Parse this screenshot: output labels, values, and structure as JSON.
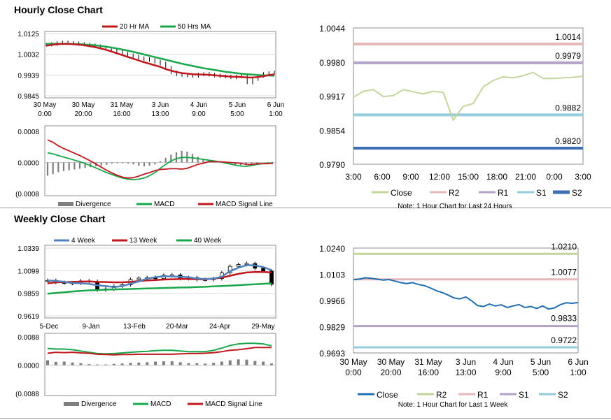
{
  "sections": {
    "hourly_title": "Hourly Close Chart",
    "weekly_title": "Weekly Close Chart"
  },
  "colors": {
    "ma20": "#c0181e",
    "ma50": "#1aa64a",
    "week4": "#4f81bd",
    "week13": "#c0181e",
    "week40": "#1aa64a",
    "close_light": "#c3d69b",
    "close_blue": "#1f6fb2",
    "r2": "#e6b9b8",
    "r1": "#b3a2c7",
    "s1": "#93cddd",
    "s2": "#3d6db3",
    "r2_weekly": "#c3d69b",
    "r1_weekly": "#e6b9b8",
    "s1_weekly": "#b3a2c7",
    "s2_weekly": "#93cddd",
    "divergence": "#7f7f7f",
    "macd": "#1aa64a",
    "signal": "#c0181e"
  },
  "chart_data": [
    {
      "id": "hourly-price",
      "type": "line",
      "title": "Hourly Close Chart",
      "legend": [
        "20 Hr MA",
        "50 Hrs MA"
      ],
      "y_ticks": [
        "1.0125",
        "1.0032",
        "0.9939",
        "0.9845"
      ],
      "ylim": [
        0.9845,
        1.0125
      ],
      "x_ticks": [
        {
          "line1": "30 May",
          "line2": "0:00"
        },
        {
          "line1": "30 May",
          "line2": "20:00"
        },
        {
          "line1": "31 May",
          "line2": "16:00"
        },
        {
          "line1": "3 Jun",
          "line2": "13:00"
        },
        {
          "line1": "4 Jun",
          "line2": "9:00"
        },
        {
          "line1": "5 Jun",
          "line2": "5:00"
        },
        {
          "line1": "6 Jun",
          "line2": "1:00"
        }
      ],
      "series": [
        {
          "name": "Close",
          "values": [
            1.0075,
            1.0078,
            1.0082,
            1.0085,
            1.0083,
            1.0081,
            1.0078,
            1.0075,
            1.0072,
            1.0068,
            1.0063,
            1.0058,
            1.005,
            1.0042,
            1.0034,
            1.0027,
            1.002,
            1.0014,
            1.001,
            1.0006,
            0.9998,
            0.999,
            0.997,
            0.995,
            0.9942,
            0.9939,
            0.9937,
            0.9935,
            0.9941,
            0.9943,
            0.994,
            0.9936,
            0.9932,
            0.9931,
            0.9928,
            0.9932,
            0.9934,
            0.9905,
            0.992,
            0.9935,
            0.9943,
            0.9947,
            0.995
          ]
        },
        {
          "name": "20 Hr MA",
          "values": [
            1.007,
            1.0074,
            1.0077,
            1.0078,
            1.0078,
            1.0077,
            1.0075,
            1.0072,
            1.0068,
            1.0064,
            1.0058,
            1.0052,
            1.0044,
            1.0036,
            1.0028,
            1.002,
            1.0012,
            1.0004,
            0.9996,
            0.9989,
            0.9982,
            0.9975,
            0.9965,
            0.9958,
            0.9952,
            0.9947,
            0.9945,
            0.9942,
            0.9941,
            0.994,
            0.9939,
            0.9937,
            0.9935,
            0.9933,
            0.9931,
            0.993,
            0.9929,
            0.9927,
            0.9927,
            0.9929,
            0.9933,
            0.9938,
            0.9941
          ]
        },
        {
          "name": "50 Hrs MA",
          "values": [
            1.0078,
            1.0079,
            1.0079,
            1.0079,
            1.0079,
            1.0078,
            1.0077,
            1.0076,
            1.0074,
            1.0072,
            1.0069,
            1.0066,
            1.0062,
            1.0058,
            1.0053,
            1.0048,
            1.0043,
            1.0037,
            1.0031,
            1.0025,
            1.0019,
            1.0013,
            1.0007,
            1.0001,
            0.9995,
            0.9989,
            0.9984,
            0.9979,
            0.9974,
            0.9969,
            0.9965,
            0.9961,
            0.9957,
            0.9953,
            0.995,
            0.9947,
            0.9944,
            0.9942,
            0.994,
            0.9938,
            0.9937,
            0.9936,
            0.9935
          ]
        }
      ]
    },
    {
      "id": "hourly-macd",
      "type": "bar",
      "y_ticks": [
        "0.0008",
        "0.0000",
        "(0.0008"
      ],
      "ylim": [
        -0.0008,
        0.0008
      ],
      "legend": [
        "Divergence",
        "MACD",
        "MACD Signal Line"
      ],
      "series": [
        {
          "name": "Divergence",
          "values": [
            -0.00034,
            -0.0003,
            -0.00025,
            -0.00022,
            -0.0002,
            -0.00018,
            -0.00016,
            -0.00014,
            -0.00012,
            -0.0001,
            -8e-05,
            -6e-05,
            -3e-05,
            -2e-05,
            -2e-05,
            -3e-05,
            -5e-05,
            -8e-05,
            -0.0001,
            -8e-05,
            -5e-05,
            3e-05,
            0.00012,
            0.0002,
            0.00026,
            0.0003,
            0.00028,
            0.00022,
            0.00015,
            0.0001,
            4e-05,
            2e-05,
            0,
            -2e-05,
            -4e-05,
            -6e-05,
            -7e-05,
            -5e-05,
            -3e-05,
            -2e-05,
            0,
            1e-05,
            1e-05
          ]
        },
        {
          "name": "MACD",
          "values": [
            0.00025,
            0.00022,
            0.00018,
            0.00014,
            0.0001,
            6e-05,
            2e-05,
            -3e-05,
            -8e-05,
            -0.00014,
            -0.0002,
            -0.00026,
            -0.00031,
            -0.00036,
            -0.0004,
            -0.00043,
            -0.00044,
            -0.00043,
            -0.0004,
            -0.00034,
            -0.00026,
            -0.00015,
            -5e-05,
            4e-05,
            0.0001,
            0.00013,
            0.00013,
            0.00012,
            0.0001,
            8e-05,
            6e-05,
            4e-05,
            2e-05,
            -1e-05,
            -4e-05,
            -7e-05,
            -9e-05,
            -0.0001,
            -8e-05,
            -5e-05,
            -3e-05,
            -2e-05,
            -1e-05
          ]
        },
        {
          "name": "MACD Signal Line",
          "values": [
            0.00058,
            0.00052,
            0.00043,
            0.00036,
            0.0003,
            0.00024,
            0.00018,
            0.00011,
            4e-05,
            -4e-05,
            -0.00012,
            -0.0002,
            -0.00027,
            -0.00033,
            -0.00038,
            -0.0004,
            -0.00039,
            -0.00035,
            -0.0003,
            -0.00026,
            -0.00021,
            -0.00018,
            -0.00017,
            -0.00016,
            -0.00016,
            -0.00017,
            -0.00015,
            -0.0001,
            -5e-05,
            -2e-05,
            2e-05,
            2e-05,
            2e-05,
            1e-05,
            0,
            -1e-05,
            -2e-05,
            -5e-05,
            -5e-05,
            -3e-05,
            -3e-05,
            -3e-05,
            -2e-05
          ]
        }
      ]
    },
    {
      "id": "hourly-levels",
      "type": "line",
      "ylim": [
        0.979,
        1.0044
      ],
      "y_ticks": [
        "1.0044",
        "0.9980",
        "0.9917",
        "0.9854",
        "0.9790"
      ],
      "x_ticks": [
        "3:00",
        "6:00",
        "9:00",
        "12:00",
        "15:00",
        "18:00",
        "21:00",
        "0:00",
        "3:00"
      ],
      "levels": [
        {
          "name": "R2",
          "value": 1.0014,
          "label": "1.0014"
        },
        {
          "name": "R1",
          "value": 0.9979,
          "label": "0.9979"
        },
        {
          "name": "S1",
          "value": 0.9882,
          "label": "0.9882"
        },
        {
          "name": "S2",
          "value": 0.982,
          "label": "0.9820"
        }
      ],
      "series": [
        {
          "name": "Close",
          "values": [
            0.9915,
            0.9926,
            0.9929,
            0.9916,
            0.9918,
            0.9929,
            0.9925,
            0.9921,
            0.9926,
            0.9924,
            0.9872,
            0.9898,
            0.9903,
            0.9934,
            0.9946,
            0.9953,
            0.9951,
            0.9955,
            0.9961,
            0.995,
            0.995,
            0.9951,
            0.9952,
            0.9954
          ]
        }
      ],
      "legend": [
        "Close",
        "R2",
        "R1",
        "S1",
        "S2"
      ],
      "note": "Note: 1 Hour Chart for Last 24 Hours"
    },
    {
      "id": "weekly-price",
      "type": "line",
      "title": "Weekly Close Chart",
      "legend": [
        "4 Week",
        "13 Week",
        "40 Week"
      ],
      "y_ticks": [
        "1.0339",
        "1.0099",
        "0.9859",
        "0.9619"
      ],
      "ylim": [
        0.9619,
        1.0339
      ],
      "x_ticks": [
        "5-Dec",
        "9-Jan",
        "13-Feb",
        "20-Mar",
        "24-Apr",
        "29-May"
      ],
      "series": [
        {
          "name": "Close",
          "values": [
            0.9995,
            0.9975,
            0.997,
            0.9965,
            0.999,
            0.9985,
            0.9895,
            0.9905,
            0.9935,
            0.995,
            1.0005,
            1.002,
            1.0025,
            1.0015,
            1.005,
            1.0055,
            1.0015,
            1.0025,
            1.0005,
            1.0005,
            1.0015,
            1.0075,
            1.0145,
            1.0165,
            1.0175,
            1.0125,
            1.0095,
            0.9955
          ]
        },
        {
          "name": "4 Week",
          "values": [
            0.9995,
            0.999,
            0.998,
            0.9968,
            0.9965,
            0.9958,
            0.9945,
            0.9935,
            0.9925,
            0.9935,
            0.996,
            0.9985,
            1.0015,
            1.003,
            1.004,
            1.0038,
            1.0035,
            1.003,
            1.0015,
            1.001,
            1.0015,
            1.0035,
            1.0095,
            1.013,
            1.0158,
            1.0155,
            1.0138,
            1.0105
          ]
        },
        {
          "name": "13 Week",
          "values": [
            0.9965,
            0.9975,
            0.9978,
            0.998,
            0.9983,
            0.9985,
            0.998,
            0.9978,
            0.9975,
            0.9975,
            0.998,
            0.9988,
            0.9995,
            1.0,
            1.0005,
            1.0008,
            1.001,
            1.001,
            1.0008,
            1.0008,
            1.0015,
            1.0025,
            1.0045,
            1.0065,
            1.008,
            1.0085,
            1.0085,
            1.008
          ]
        },
        {
          "name": "40 Week",
          "values": [
            0.9855,
            0.9862,
            0.987,
            0.9878,
            0.9885,
            0.989,
            0.9893,
            0.9897,
            0.99,
            0.9902,
            0.9905,
            0.9908,
            0.991,
            0.9912,
            0.9915,
            0.9918,
            0.992,
            0.9922,
            0.9925,
            0.9928,
            0.9932,
            0.9936,
            0.994,
            0.9945,
            0.995,
            0.9955,
            0.996,
            0.9965
          ]
        }
      ]
    },
    {
      "id": "weekly-macd",
      "type": "bar",
      "y_ticks": [
        "0.0088",
        "0.0000",
        "(0.0088"
      ],
      "ylim": [
        -0.0088,
        0.0088
      ],
      "legend": [
        "Divergence",
        "MACD",
        "MACD Signal Line"
      ],
      "series": [
        {
          "name": "Divergence",
          "values": [
            0.0015,
            0.001,
            0.0011,
            0.0008,
            0.0006,
            0.0003,
            0.0002,
            0.0002,
            0.0004,
            0.0005,
            0.0007,
            0.0008,
            0.0009,
            0.0011,
            0.0012,
            0.0012,
            0.0009,
            0.0006,
            0.0006,
            0.0005,
            0.0007,
            0.0011,
            0.0015,
            0.0018,
            0.0017,
            0.0013,
            0.0011,
            0.0005
          ]
        },
        {
          "name": "MACD",
          "values": [
            0.0052,
            0.005,
            0.005,
            0.0048,
            0.0044,
            0.004,
            0.0036,
            0.0035,
            0.0036,
            0.0038,
            0.004,
            0.0042,
            0.0043,
            0.0045,
            0.0046,
            0.0046,
            0.0044,
            0.0042,
            0.0042,
            0.0042,
            0.0046,
            0.0053,
            0.0061,
            0.0066,
            0.0068,
            0.0068,
            0.0066,
            0.006
          ]
        },
        {
          "name": "MACD Signal Line",
          "values": [
            0.0037,
            0.004,
            0.0039,
            0.004,
            0.0038,
            0.0037,
            0.0034,
            0.0033,
            0.0032,
            0.0033,
            0.0033,
            0.0034,
            0.0034,
            0.0034,
            0.0034,
            0.0034,
            0.0035,
            0.0036,
            0.0036,
            0.0037,
            0.0039,
            0.0042,
            0.0046,
            0.0048,
            0.0051,
            0.0055,
            0.0055,
            0.0055
          ]
        }
      ]
    },
    {
      "id": "weekly-levels",
      "type": "line",
      "ylim": [
        0.9693,
        1.024
      ],
      "y_ticks": [
        "1.0240",
        "1.0103",
        "0.9966",
        "0.9829",
        "0.9693"
      ],
      "x_ticks": [
        {
          "line1": "30 May",
          "line2": "0:00"
        },
        {
          "line1": "30 May",
          "line2": "20:00"
        },
        {
          "line1": "31 May",
          "line2": "16:00"
        },
        {
          "line1": "3 Jun",
          "line2": "13:00"
        },
        {
          "line1": "4 Jun",
          "line2": "9:00"
        },
        {
          "line1": "5 Jun",
          "line2": "5:00"
        },
        {
          "line1": "6 Jun",
          "line2": "1:00"
        }
      ],
      "levels": [
        {
          "name": "R2",
          "value": 1.021,
          "label": "1.0210"
        },
        {
          "name": "R1",
          "value": 1.0077,
          "label": "1.0077"
        },
        {
          "name": "S1",
          "value": 0.9833,
          "label": "0.9833"
        },
        {
          "name": "S2",
          "value": 0.9722,
          "label": "0.9722"
        }
      ],
      "series": [
        {
          "name": "Close",
          "values": [
            1.0075,
            1.0078,
            1.0085,
            1.0082,
            1.0078,
            1.0073,
            1.0076,
            1.0068,
            1.006,
            1.0055,
            1.006,
            1.005,
            1.0044,
            1.0032,
            1.0018,
            1.0008,
            0.9995,
            0.998,
            0.9975,
            0.9985,
            0.9965,
            0.994,
            0.9935,
            0.9948,
            0.9938,
            0.9944,
            0.993,
            0.9938,
            0.9945,
            0.993,
            0.9935,
            0.9925,
            0.9938,
            0.9922,
            0.9928,
            0.9945,
            0.9955,
            0.9952,
            0.9956
          ]
        }
      ],
      "legend": [
        "Close",
        "R2",
        "R1",
        "S1",
        "S2"
      ],
      "note": "Note: 1 Hour Chart for Last 1 Week"
    }
  ]
}
